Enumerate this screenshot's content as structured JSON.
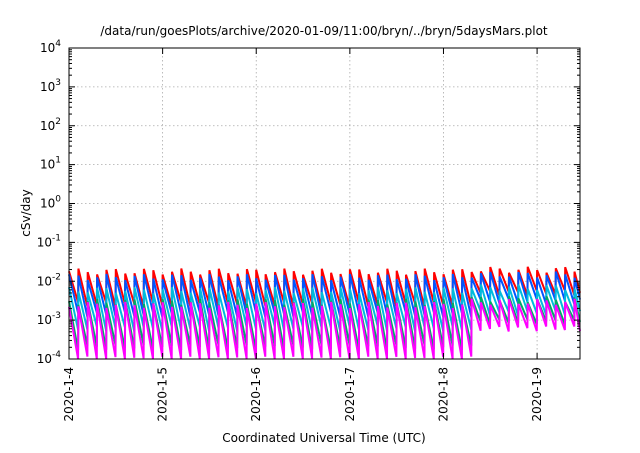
{
  "chart_data": {
    "type": "line",
    "title": "/data/run/goesPlots/archive/2020-01-09/11:00/bryn/../bryn/5daysMars.plot",
    "xlabel": "Coordinated Universal Time (UTC)",
    "ylabel": "cSv/day",
    "xlim": [
      "2020-01-04",
      "2020-01-09 11:00"
    ],
    "ylim": [
      0.0001,
      10000
    ],
    "yscale": "log",
    "grid": true,
    "x_ticks": [
      "2020-1-4",
      "2020-1-5",
      "2020-1-6",
      "2020-1-7",
      "2020-1-8",
      "2020-1-9"
    ],
    "y_ticks": [
      {
        "base": "10",
        "exp": "-4"
      },
      {
        "base": "10",
        "exp": "-3"
      },
      {
        "base": "10",
        "exp": "-2"
      },
      {
        "base": "10",
        "exp": "-1"
      },
      {
        "base": "10",
        "exp": "0"
      },
      {
        "base": "10",
        "exp": "1"
      },
      {
        "base": "10",
        "exp": "2"
      },
      {
        "base": "10",
        "exp": "3"
      },
      {
        "base": "10",
        "exp": "4"
      }
    ],
    "series": [
      {
        "color": "#ff0000",
        "peak": 0.018,
        "trough": 0.0025,
        "peak_late": 0.02,
        "trough_late": 0.005
      },
      {
        "color": "#0055ff",
        "peak": 0.013,
        "trough": 0.0014,
        "peak_late": 0.015,
        "trough_late": 0.003
      },
      {
        "color": "#00bbdd",
        "peak": 0.006,
        "trough": 0.0006,
        "peak_late": 0.007,
        "trough_late": 0.0015
      },
      {
        "color": "#00aa66",
        "peak": 0.003,
        "trough": 0.0002,
        "peak_late": 0.0035,
        "trough_late": 0.0009
      },
      {
        "color": "#ff00ff",
        "peak": 0.0025,
        "trough": 0.0001,
        "peak_late": 0.003,
        "trough_late": 0.0006
      }
    ],
    "cycles_per_day": 10,
    "late_regime_start": "2020-01-08 06:00"
  }
}
